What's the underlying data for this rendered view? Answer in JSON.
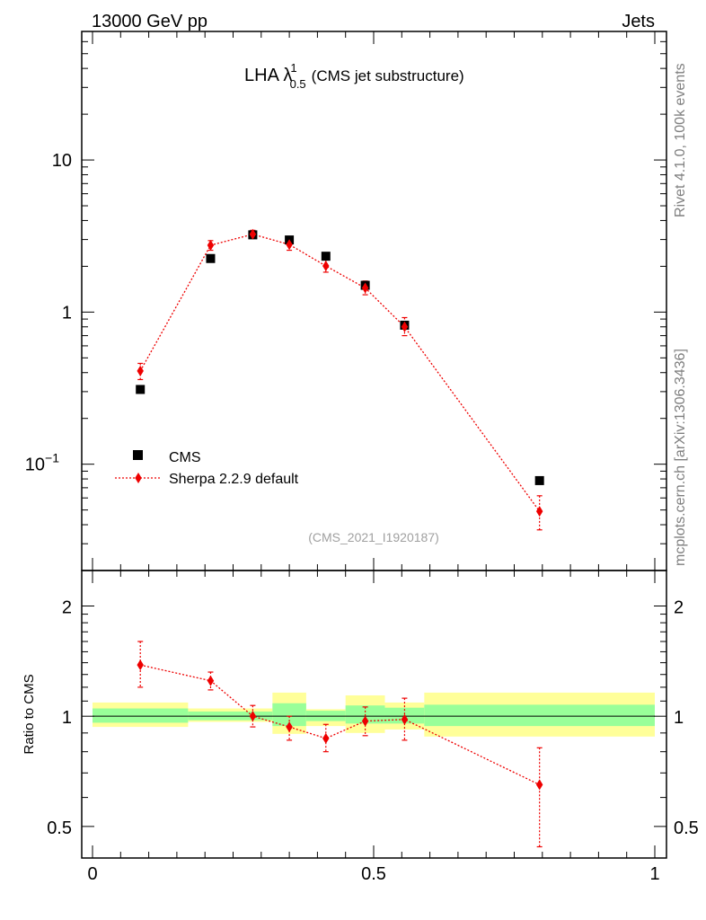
{
  "header": {
    "left": "13000 GeV pp",
    "right": "Jets"
  },
  "side": {
    "rivet": "Rivet 4.1.0,  100k events",
    "mcplots": "mcplots.cern.ch [arXiv:1306.3436]"
  },
  "chart_data": [
    {
      "type": "scatter",
      "title_prefix": "LHA λ",
      "title_sup": "1",
      "title_sub": "0.5",
      "title_suffix": "(CMS jet substructure)",
      "watermark": "(CMS_2021_I1920187)",
      "yscale": "log",
      "xlim": [
        0,
        1
      ],
      "ylim": [
        0.02,
        70
      ],
      "yticks": [
        {
          "value": 0.1,
          "base": "10",
          "exp": "−1"
        },
        {
          "value": 1,
          "base": "1",
          "exp": ""
        },
        {
          "value": 10,
          "base": "10",
          "exp": ""
        }
      ],
      "legend": {
        "placement": "bottom-left"
      },
      "series": [
        {
          "name": "CMS",
          "color": "#000000",
          "marker": "square",
          "x": [
            0.085,
            0.21,
            0.285,
            0.35,
            0.415,
            0.485,
            0.555,
            0.795
          ],
          "y": [
            0.31,
            2.25,
            3.22,
            2.98,
            2.33,
            1.5,
            0.82,
            0.078
          ]
        },
        {
          "name": "Sherpa 2.2.9 default",
          "color": "#ee0000",
          "marker": "diamond",
          "x": [
            0.085,
            0.21,
            0.285,
            0.35,
            0.415,
            0.485,
            0.555,
            0.795
          ],
          "y": [
            0.41,
            2.75,
            3.25,
            2.78,
            2.01,
            1.44,
            0.8,
            0.049
          ],
          "yerr_low": [
            0.36,
            2.55,
            3.05,
            2.55,
            1.83,
            1.3,
            0.7,
            0.037
          ],
          "yerr_high": [
            0.46,
            2.95,
            3.45,
            3.0,
            2.2,
            1.6,
            0.92,
            0.062
          ]
        }
      ]
    },
    {
      "type": "scatter",
      "ylabel": "Ratio to CMS",
      "yscale": "log",
      "xlim": [
        0,
        1
      ],
      "ylim": [
        0.41,
        2.5
      ],
      "yticks": [
        {
          "value": 0.5,
          "label": "0.5"
        },
        {
          "value": 1,
          "label": "1"
        },
        {
          "value": 2,
          "label": "2"
        }
      ],
      "xticks": [
        {
          "value": 0,
          "label": "0"
        },
        {
          "value": 0.5,
          "label": "0.5"
        },
        {
          "value": 1,
          "label": "1"
        }
      ],
      "bands": {
        "bins": [
          [
            0.0,
            0.17
          ],
          [
            0.17,
            0.32
          ],
          [
            0.32,
            0.38
          ],
          [
            0.38,
            0.45
          ],
          [
            0.45,
            0.52
          ],
          [
            0.52,
            0.59
          ],
          [
            0.59,
            1.0
          ]
        ],
        "green": [
          [
            0.96,
            1.05
          ],
          [
            0.975,
            1.03
          ],
          [
            0.94,
            1.085
          ],
          [
            0.97,
            1.035
          ],
          [
            0.955,
            1.07
          ],
          [
            0.955,
            1.055
          ],
          [
            0.94,
            1.075
          ]
        ],
        "yellow": [
          [
            0.935,
            1.09
          ],
          [
            0.965,
            1.05
          ],
          [
            0.895,
            1.16
          ],
          [
            0.94,
            1.045
          ],
          [
            0.9,
            1.14
          ],
          [
            0.92,
            1.09
          ],
          [
            0.88,
            1.16
          ]
        ],
        "green_color": "#99ff99",
        "yellow_color": "#ffff99"
      },
      "series": [
        {
          "name": "Sherpa 2.2.9 default",
          "color": "#ee0000",
          "x": [
            0.085,
            0.21,
            0.285,
            0.35,
            0.415,
            0.485,
            0.555,
            0.795
          ],
          "y": [
            1.38,
            1.25,
            1.0,
            0.935,
            0.87,
            0.97,
            0.98,
            0.65
          ],
          "yerr_low": [
            1.2,
            1.18,
            0.935,
            0.86,
            0.8,
            0.885,
            0.86,
            0.44
          ],
          "yerr_high": [
            1.6,
            1.32,
            1.07,
            1.0,
            0.95,
            1.06,
            1.12,
            0.82
          ]
        }
      ]
    }
  ]
}
